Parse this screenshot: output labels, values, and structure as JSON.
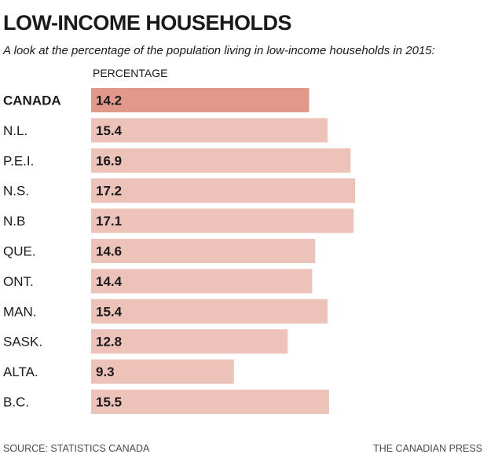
{
  "title": "LOW-INCOME HOUSEHOLDS",
  "subtitle": "A look at the percentage of the population living in low-income households in 2015:",
  "source": "SOURCE: STATISTICS CANADA",
  "credit": "THE CANADIAN PRESS",
  "colors": {
    "highlight_bar": "#e0998a",
    "bar": "#edc2b8",
    "text": "#1a1a1a"
  },
  "chart_data": {
    "type": "bar",
    "orientation": "horizontal",
    "ylabel": "PERCENTAGE",
    "categories": [
      "CANADA",
      "N.L.",
      "P.E.I.",
      "N.S.",
      "N.B",
      "QUE.",
      "ONT.",
      "MAN.",
      "SASK.",
      "ALTA.",
      "B.C."
    ],
    "values": [
      14.2,
      15.4,
      16.9,
      17.2,
      17.1,
      14.6,
      14.4,
      15.4,
      12.8,
      9.3,
      15.5
    ],
    "highlight_category": "CANADA",
    "xlim": [
      0,
      17.5
    ],
    "grid": false,
    "data_labels": true
  }
}
